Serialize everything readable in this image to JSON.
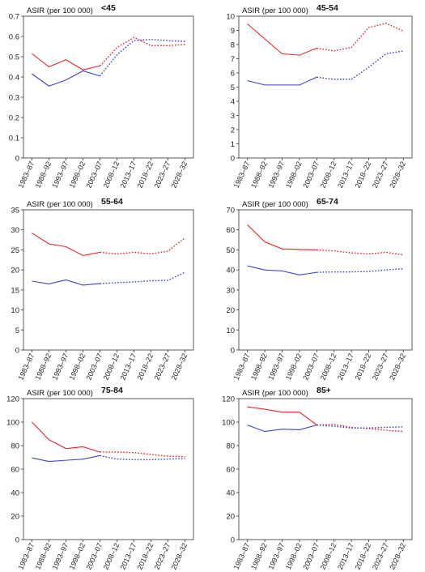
{
  "chart_data": [
    {
      "type": "line",
      "title": "<45",
      "ylabel": "ASIR (per 100 000)",
      "ylim": [
        0,
        0.7
      ],
      "yticks": [
        "0",
        "0.1",
        "0.2",
        "0.3",
        "0.4",
        "0.5",
        "0.6",
        "0.7"
      ],
      "categories": [
        "1983–87",
        "1988–92",
        "1993–97",
        "1998–02",
        "2003–07",
        "2008–12",
        "2013–17",
        "2018–22",
        "2023–27",
        "2028–32"
      ],
      "observed_until_index": 4,
      "series": [
        {
          "color": "#e8242b",
          "values": [
            0.515,
            0.45,
            0.485,
            0.435,
            0.455,
            0.545,
            0.595,
            0.555,
            0.555,
            0.56
          ]
        },
        {
          "color": "#3b43c8",
          "values": [
            0.415,
            0.355,
            0.385,
            0.43,
            0.405,
            0.51,
            0.58,
            0.585,
            0.58,
            0.575
          ]
        }
      ]
    },
    {
      "type": "line",
      "title": "45-54",
      "ylabel": "ASIR (per 100 000)",
      "ylim": [
        0,
        10
      ],
      "yticks": [
        "0",
        "1",
        "2",
        "3",
        "4",
        "5",
        "6",
        "7",
        "8",
        "9",
        "10"
      ],
      "categories": [
        "1983–87",
        "1988–92",
        "1993–97",
        "1998–02",
        "2003–07",
        "2008–12",
        "2013–17",
        "2018–22",
        "2023–27",
        "2028–32"
      ],
      "observed_until_index": 4,
      "series": [
        {
          "color": "#e8242b",
          "values": [
            9.45,
            8.4,
            7.35,
            7.25,
            7.75,
            7.55,
            7.8,
            9.2,
            9.5,
            8.95
          ]
        },
        {
          "color": "#3b43c8",
          "values": [
            5.45,
            5.15,
            5.15,
            5.15,
            5.7,
            5.55,
            5.55,
            6.4,
            7.35,
            7.55
          ]
        }
      ]
    },
    {
      "type": "line",
      "title": "55-64",
      "ylabel": "ASIR (per 100 000)",
      "ylim": [
        0,
        35
      ],
      "yticks": [
        "0",
        "5",
        "10",
        "15",
        "20",
        "25",
        "30",
        "35"
      ],
      "categories": [
        "1983–87",
        "1988–92",
        "1993–97",
        "1998–02",
        "2003–07",
        "2008–12",
        "2013–17",
        "2018–22",
        "2023–27",
        "2028–32"
      ],
      "observed_until_index": 4,
      "series": [
        {
          "color": "#e8242b",
          "values": [
            29.2,
            26.5,
            25.8,
            23.6,
            24.4,
            24.0,
            24.4,
            24.0,
            24.7,
            28.0
          ]
        },
        {
          "color": "#3b43c8",
          "values": [
            17.2,
            16.5,
            17.5,
            16.2,
            16.6,
            16.8,
            17.0,
            17.3,
            17.4,
            19.4
          ]
        }
      ]
    },
    {
      "type": "line",
      "title": "65-74",
      "ylabel": "ASIR (per 100 000)",
      "ylim": [
        0,
        70
      ],
      "yticks": [
        "0",
        "10",
        "20",
        "30",
        "40",
        "50",
        "60",
        "70"
      ],
      "categories": [
        "1983–87",
        "1988–92",
        "1993–97",
        "1998–02",
        "2003–07",
        "2008–12",
        "2013–17",
        "2018–22",
        "2023–27",
        "2028–32"
      ],
      "observed_until_index": 4,
      "series": [
        {
          "color": "#e8242b",
          "values": [
            62.5,
            54.0,
            50.5,
            50.2,
            50.0,
            49.5,
            48.5,
            48.0,
            48.8,
            47.5
          ]
        },
        {
          "color": "#3b43c8",
          "values": [
            42.0,
            40.0,
            39.5,
            37.5,
            38.8,
            39.0,
            39.0,
            39.2,
            40.0,
            40.6
          ]
        }
      ]
    },
    {
      "type": "line",
      "title": "75-84",
      "ylabel": "ASIR (per 100 000)",
      "ylim": [
        0,
        120
      ],
      "yticks": [
        "0",
        "20",
        "40",
        "60",
        "80",
        "100",
        "120"
      ],
      "categories": [
        "1983–87",
        "1988–92",
        "1993–97",
        "1998–02",
        "2003–07",
        "2008–12",
        "2013–17",
        "2018–22",
        "2023–27",
        "2028–32"
      ],
      "observed_until_index": 4,
      "series": [
        {
          "color": "#e8242b",
          "values": [
            100.0,
            85.0,
            77.5,
            79.0,
            74.5,
            74.5,
            74.0,
            72.5,
            71.0,
            70.5
          ]
        },
        {
          "color": "#3b43c8",
          "values": [
            69.5,
            66.5,
            67.5,
            68.5,
            71.5,
            68.5,
            68.0,
            68.0,
            68.5,
            69.0
          ]
        }
      ]
    },
    {
      "type": "line",
      "title": "85+",
      "ylabel": "ASIR (per 100 000)",
      "ylim": [
        0,
        120
      ],
      "yticks": [
        "0",
        "20",
        "40",
        "60",
        "80",
        "100",
        "120"
      ],
      "categories": [
        "1983–87",
        "1988–92",
        "1993–97",
        "1998–02",
        "2003–07",
        "2008–12",
        "2013–17",
        "2018–22",
        "2023–27",
        "2028–32"
      ],
      "observed_until_index": 4,
      "series": [
        {
          "color": "#e8242b",
          "values": [
            113.0,
            111.0,
            108.5,
            108.5,
            97.5,
            98.0,
            95.5,
            94.5,
            93.0,
            92.0
          ]
        },
        {
          "color": "#3b43c8",
          "values": [
            97.5,
            92.0,
            94.0,
            93.5,
            97.5,
            96.5,
            95.0,
            95.0,
            95.5,
            96.0
          ]
        }
      ]
    }
  ]
}
